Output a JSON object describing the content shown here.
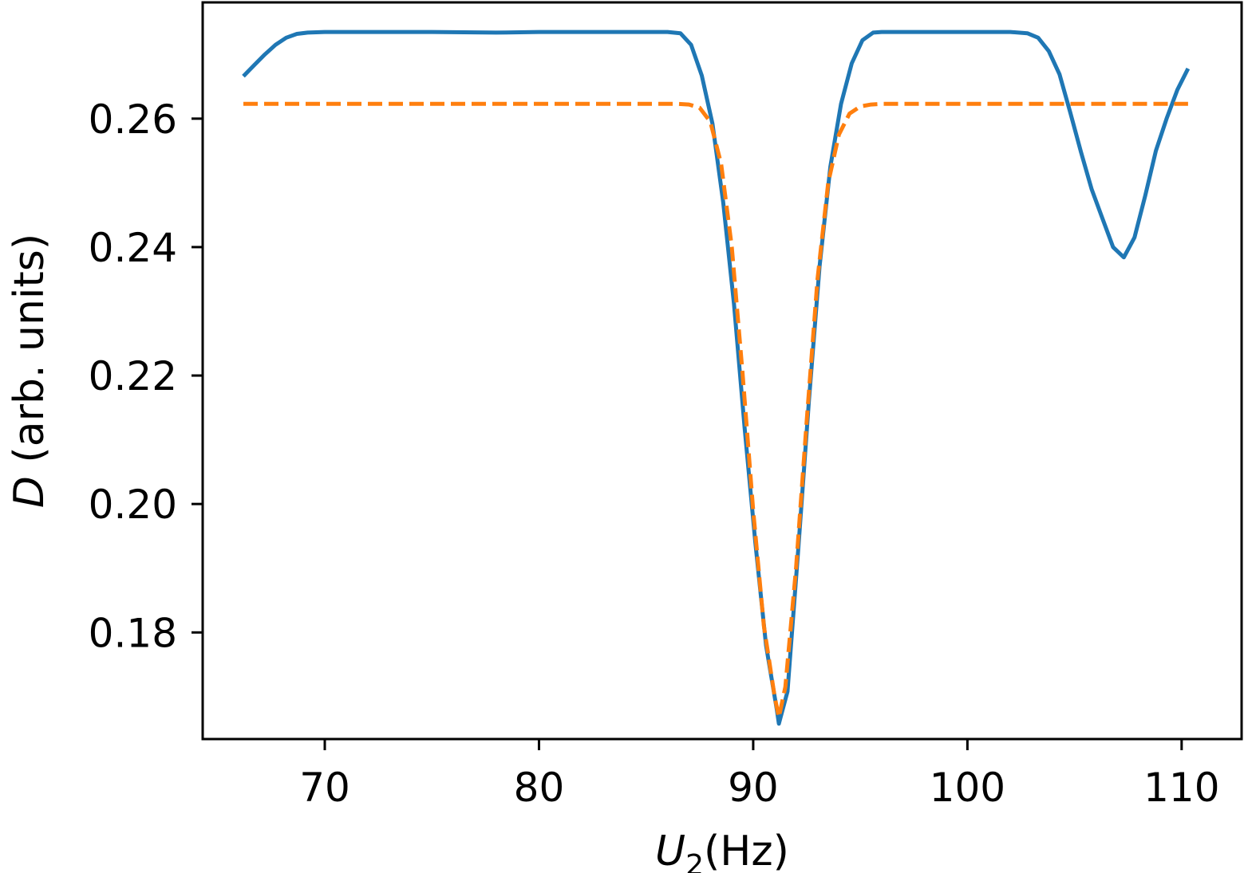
{
  "chart_data": {
    "type": "line",
    "xlabel": {
      "var": "U",
      "sub": "2",
      "unit": "(Hz)"
    },
    "ylabel": {
      "var": "D",
      "rest": " (arb. units)"
    },
    "xlim": [
      64.3,
      112.8
    ],
    "ylim": [
      0.1634,
      0.2781
    ],
    "xticks": [
      70,
      80,
      90,
      100,
      110
    ],
    "xtick_labels": [
      "70",
      "80",
      "90",
      "100",
      "110"
    ],
    "yticks": [
      0.18,
      0.2,
      0.22,
      0.24,
      0.26
    ],
    "ytick_labels": [
      "0.18",
      "0.20",
      "0.22",
      "0.24",
      "0.26"
    ],
    "grid": false,
    "legend": "none",
    "series": [
      {
        "color": "#1f77b4",
        "style": "solid",
        "x": [
          66.2,
          66.7,
          67.2,
          67.7,
          68.2,
          68.7,
          69.2,
          70.0,
          72.0,
          75.0,
          78.0,
          80.0,
          83.0,
          85.0,
          86.0,
          86.6,
          87.1,
          87.6,
          88.1,
          88.6,
          89.1,
          89.6,
          90.1,
          90.6,
          91.1,
          91.2,
          91.6,
          92.1,
          92.6,
          93.1,
          93.6,
          94.1,
          94.6,
          95.1,
          95.6,
          96.0,
          97.0,
          98.0,
          100.0,
          102.0,
          102.8,
          103.3,
          103.8,
          104.3,
          104.8,
          105.3,
          105.8,
          106.3,
          106.8,
          107.3,
          107.8,
          108.3,
          108.8,
          109.3,
          109.8,
          110.3
        ],
        "y": [
          0.2666,
          0.2683,
          0.27,
          0.2715,
          0.2726,
          0.2732,
          0.2734,
          0.2735,
          0.2735,
          0.2735,
          0.2734,
          0.2735,
          0.2735,
          0.2735,
          0.2735,
          0.2733,
          0.2715,
          0.2667,
          0.2592,
          0.247,
          0.2312,
          0.2118,
          0.194,
          0.178,
          0.168,
          0.1658,
          0.1708,
          0.1928,
          0.216,
          0.237,
          0.2525,
          0.2623,
          0.2686,
          0.2722,
          0.2734,
          0.2735,
          0.2735,
          0.2735,
          0.2735,
          0.2735,
          0.2733,
          0.2726,
          0.2705,
          0.2669,
          0.261,
          0.2548,
          0.249,
          0.2445,
          0.24,
          0.2384,
          0.2415,
          0.248,
          0.255,
          0.26,
          0.2645,
          0.2678
        ]
      },
      {
        "color": "#ff7f0e",
        "style": "dashed",
        "x": [
          66.2,
          70.0,
          75.0,
          80.0,
          85.0,
          86.5,
          87.0,
          87.5,
          88.0,
          88.5,
          89.0,
          89.5,
          90.0,
          90.5,
          91.0,
          91.2,
          91.5,
          92.0,
          92.5,
          93.0,
          93.5,
          94.0,
          94.5,
          95.0,
          95.5,
          96.0,
          100.0,
          105.0,
          110.3
        ],
        "y": [
          0.2623,
          0.2623,
          0.2623,
          0.2623,
          0.2623,
          0.2623,
          0.2622,
          0.2617,
          0.2595,
          0.253,
          0.24,
          0.2205,
          0.199,
          0.181,
          0.17,
          0.1668,
          0.1715,
          0.19,
          0.213,
          0.235,
          0.25,
          0.2575,
          0.2608,
          0.2619,
          0.2622,
          0.2623,
          0.2623,
          0.2623,
          0.2623
        ]
      }
    ]
  }
}
